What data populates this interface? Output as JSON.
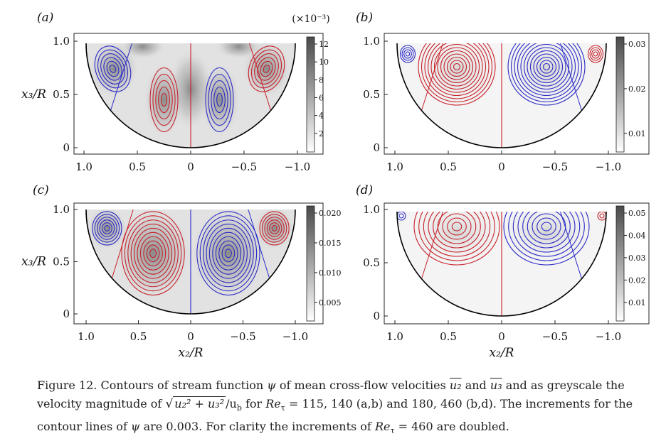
{
  "panels": [
    {
      "id": "a",
      "label": "(a)",
      "cbar_scale": "(×10⁻³)",
      "cbar_ticks": [
        "12",
        "10",
        "8",
        "6",
        "4",
        "2"
      ],
      "xticks": [
        "1.0",
        "0.5",
        "0",
        "−0.5",
        "−1.0"
      ],
      "yticks": [
        "1.0",
        "0.5",
        "0"
      ],
      "show_ylabel": true,
      "show_xlabel": false
    },
    {
      "id": "b",
      "label": "(b)",
      "cbar_scale": "",
      "cbar_ticks": [
        "0.03",
        "0.02",
        "0.01"
      ],
      "xticks": [
        "1.0",
        "0.5",
        "0",
        "−0.5",
        "−1.0"
      ],
      "yticks": [
        "1.0",
        "0.5",
        "0"
      ],
      "show_ylabel": false,
      "show_xlabel": false
    },
    {
      "id": "c",
      "label": "(c)",
      "cbar_scale": "",
      "cbar_ticks": [
        "0.020",
        "0.015",
        "0.010",
        "0.005"
      ],
      "xticks": [
        "1.0",
        "0.5",
        "0",
        "−0.5",
        "−1.0"
      ],
      "yticks": [
        "1.0",
        "0.5",
        "0"
      ],
      "show_ylabel": true,
      "show_xlabel": true
    },
    {
      "id": "d",
      "label": "(d)",
      "cbar_scale": "",
      "cbar_ticks": [
        "0.05",
        "0.04",
        "0.03",
        "0.02",
        "0.01"
      ],
      "xticks": [
        "1.0",
        "0.5",
        "0",
        "−0.5",
        "−1.0"
      ],
      "yticks": [
        "1.0",
        "0.5",
        "0"
      ],
      "show_ylabel": false,
      "show_xlabel": true
    }
  ],
  "axis_labels": {
    "x": "x₂/R",
    "y": "x₃/R"
  },
  "colors": {
    "positive": "#c8202a",
    "negative": "#2a2ac8",
    "wall": "#000000"
  },
  "caption": {
    "lead": "Figure  12.  Contours of stream function ",
    "psi": "ψ",
    "mid1": " of mean cross-flow velocities ",
    "u2": "u₂",
    "and": " and ",
    "u3": "u₃",
    "mid2": " and as greyscale the velocity magnitude of ",
    "sqrt_body": "u₂² + u₃²",
    "over_ub": "/u",
    "ub_sub": "b",
    "for": " for ",
    "re": "Re",
    "tau": "τ",
    "values1": " = 115, 140 (a,b) and 180, 460 (b,d). The increments for the contour lines of ",
    "inc": " are 0.003. For clarity the increments of ",
    "values2": " = 460 are doubled."
  }
}
